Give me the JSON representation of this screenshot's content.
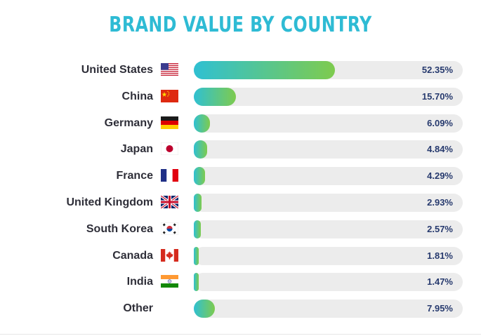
{
  "chart_data": {
    "type": "bar",
    "orientation": "horizontal",
    "title": "BRAND VALUE BY COUNTRY",
    "unit": "%",
    "xlim": [
      0,
      100
    ],
    "colors": {
      "gradient_start": "#2fc0d2",
      "gradient_end": "#7ecb4e",
      "track": "#ececec",
      "title": "#2ebbd4",
      "value_text": "#273a6e",
      "label_text": "#2e2e38"
    },
    "rows": [
      {
        "category": "United States",
        "value": 52.35,
        "label": "52.35%",
        "flag": "us-flag-icon"
      },
      {
        "category": "China",
        "value": 15.7,
        "label": "15.70%",
        "flag": "china-flag-icon"
      },
      {
        "category": "Germany",
        "value": 6.09,
        "label": "6.09%",
        "flag": "germany-flag-icon"
      },
      {
        "category": "Japan",
        "value": 4.84,
        "label": "4.84%",
        "flag": "japan-flag-icon"
      },
      {
        "category": "France",
        "value": 4.29,
        "label": "4.29%",
        "flag": "france-flag-icon"
      },
      {
        "category": "United Kingdom",
        "value": 2.93,
        "label": "2.93%",
        "flag": "uk-flag-icon"
      },
      {
        "category": "South Korea",
        "value": 2.57,
        "label": "2.57%",
        "flag": "south-korea-flag-icon"
      },
      {
        "category": "Canada",
        "value": 1.81,
        "label": "1.81%",
        "flag": "canada-flag-icon"
      },
      {
        "category": "India",
        "value": 1.47,
        "label": "1.47%",
        "flag": "india-flag-icon"
      },
      {
        "category": "Other",
        "value": 7.95,
        "label": "7.95%",
        "flag": ""
      }
    ]
  }
}
